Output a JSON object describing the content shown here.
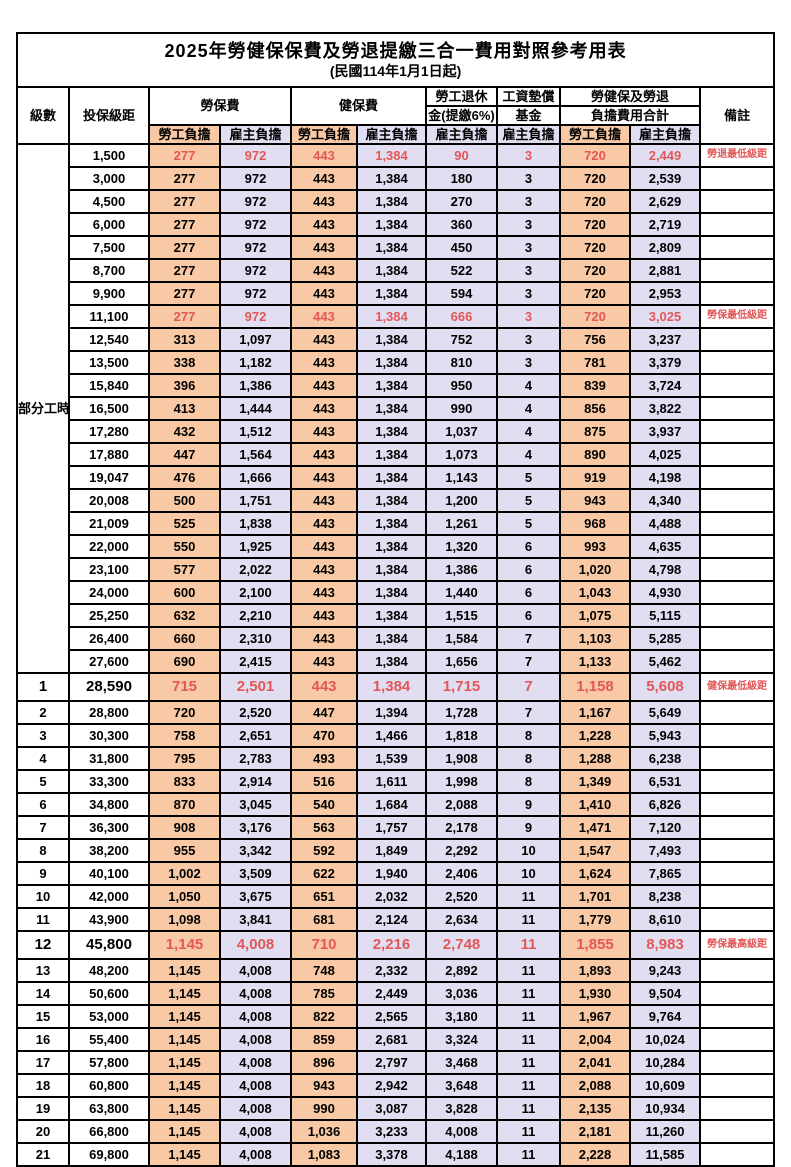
{
  "page": {
    "title": "2025年勞健保保費及勞退提繳三合一費用對照參考用表",
    "subtitle": "(民國114年1月1日起)"
  },
  "header": {
    "level": "級數",
    "bracket": "投保級距",
    "labor_fee": "勞保費",
    "health_fee": "健保費",
    "pension_line1": "勞工退休",
    "pension_line2": "金(提繳6%)",
    "wage_fund_line1": "工資墊償",
    "wage_fund_line2": "基金",
    "total_line1": "勞健保及勞退",
    "total_line2": "負擔費用合計",
    "employee_share": "勞工負擔",
    "employer_share": "雇主負擔",
    "remark": "備註"
  },
  "part_time_label": "部分工時",
  "part_time_rowspan": 23,
  "colors": {
    "employee_bg": "#F8C9A4",
    "employer_bg": "#E2DEF2",
    "highlight_red": "#E25757",
    "border": "#000000"
  },
  "rows": [
    {
      "level": "",
      "bracket": "1,500",
      "values": [
        "277",
        "972",
        "443",
        "1,384",
        "90",
        "3",
        "720",
        "2,449"
      ],
      "remark": "勞退最低級距",
      "highlight": true,
      "big": false
    },
    {
      "level": "",
      "bracket": "3,000",
      "values": [
        "277",
        "972",
        "443",
        "1,384",
        "180",
        "3",
        "720",
        "2,539"
      ],
      "remark": "",
      "highlight": false,
      "big": false
    },
    {
      "level": "",
      "bracket": "4,500",
      "values": [
        "277",
        "972",
        "443",
        "1,384",
        "270",
        "3",
        "720",
        "2,629"
      ],
      "remark": "",
      "highlight": false,
      "big": false
    },
    {
      "level": "",
      "bracket": "6,000",
      "values": [
        "277",
        "972",
        "443",
        "1,384",
        "360",
        "3",
        "720",
        "2,719"
      ],
      "remark": "",
      "highlight": false,
      "big": false
    },
    {
      "level": "",
      "bracket": "7,500",
      "values": [
        "277",
        "972",
        "443",
        "1,384",
        "450",
        "3",
        "720",
        "2,809"
      ],
      "remark": "",
      "highlight": false,
      "big": false
    },
    {
      "level": "",
      "bracket": "8,700",
      "values": [
        "277",
        "972",
        "443",
        "1,384",
        "522",
        "3",
        "720",
        "2,881"
      ],
      "remark": "",
      "highlight": false,
      "big": false
    },
    {
      "level": "",
      "bracket": "9,900",
      "values": [
        "277",
        "972",
        "443",
        "1,384",
        "594",
        "3",
        "720",
        "2,953"
      ],
      "remark": "",
      "highlight": false,
      "big": false
    },
    {
      "level": "",
      "bracket": "11,100",
      "values": [
        "277",
        "972",
        "443",
        "1,384",
        "666",
        "3",
        "720",
        "3,025"
      ],
      "remark": "勞保最低級距",
      "highlight": true,
      "big": false
    },
    {
      "level": "",
      "bracket": "12,540",
      "values": [
        "313",
        "1,097",
        "443",
        "1,384",
        "752",
        "3",
        "756",
        "3,237"
      ],
      "remark": "",
      "highlight": false,
      "big": false
    },
    {
      "level": "",
      "bracket": "13,500",
      "values": [
        "338",
        "1,182",
        "443",
        "1,384",
        "810",
        "3",
        "781",
        "3,379"
      ],
      "remark": "",
      "highlight": false,
      "big": false
    },
    {
      "level": "",
      "bracket": "15,840",
      "values": [
        "396",
        "1,386",
        "443",
        "1,384",
        "950",
        "4",
        "839",
        "3,724"
      ],
      "remark": "",
      "highlight": false,
      "big": false
    },
    {
      "level": "",
      "bracket": "16,500",
      "values": [
        "413",
        "1,444",
        "443",
        "1,384",
        "990",
        "4",
        "856",
        "3,822"
      ],
      "remark": "",
      "highlight": false,
      "big": false
    },
    {
      "level": "",
      "bracket": "17,280",
      "values": [
        "432",
        "1,512",
        "443",
        "1,384",
        "1,037",
        "4",
        "875",
        "3,937"
      ],
      "remark": "",
      "highlight": false,
      "big": false
    },
    {
      "level": "",
      "bracket": "17,880",
      "values": [
        "447",
        "1,564",
        "443",
        "1,384",
        "1,073",
        "4",
        "890",
        "4,025"
      ],
      "remark": "",
      "highlight": false,
      "big": false
    },
    {
      "level": "",
      "bracket": "19,047",
      "values": [
        "476",
        "1,666",
        "443",
        "1,384",
        "1,143",
        "5",
        "919",
        "4,198"
      ],
      "remark": "",
      "highlight": false,
      "big": false
    },
    {
      "level": "",
      "bracket": "20,008",
      "values": [
        "500",
        "1,751",
        "443",
        "1,384",
        "1,200",
        "5",
        "943",
        "4,340"
      ],
      "remark": "",
      "highlight": false,
      "big": false
    },
    {
      "level": "",
      "bracket": "21,009",
      "values": [
        "525",
        "1,838",
        "443",
        "1,384",
        "1,261",
        "5",
        "968",
        "4,488"
      ],
      "remark": "",
      "highlight": false,
      "big": false
    },
    {
      "level": "",
      "bracket": "22,000",
      "values": [
        "550",
        "1,925",
        "443",
        "1,384",
        "1,320",
        "6",
        "993",
        "4,635"
      ],
      "remark": "",
      "highlight": false,
      "big": false
    },
    {
      "level": "",
      "bracket": "23,100",
      "values": [
        "577",
        "2,022",
        "443",
        "1,384",
        "1,386",
        "6",
        "1,020",
        "4,798"
      ],
      "remark": "",
      "highlight": false,
      "big": false
    },
    {
      "level": "",
      "bracket": "24,000",
      "values": [
        "600",
        "2,100",
        "443",
        "1,384",
        "1,440",
        "6",
        "1,043",
        "4,930"
      ],
      "remark": "",
      "highlight": false,
      "big": false
    },
    {
      "level": "",
      "bracket": "25,250",
      "values": [
        "632",
        "2,210",
        "443",
        "1,384",
        "1,515",
        "6",
        "1,075",
        "5,115"
      ],
      "remark": "",
      "highlight": false,
      "big": false
    },
    {
      "level": "",
      "bracket": "26,400",
      "values": [
        "660",
        "2,310",
        "443",
        "1,384",
        "1,584",
        "7",
        "1,103",
        "5,285"
      ],
      "remark": "",
      "highlight": false,
      "big": false
    },
    {
      "level": "",
      "bracket": "27,600",
      "values": [
        "690",
        "2,415",
        "443",
        "1,384",
        "1,656",
        "7",
        "1,133",
        "5,462"
      ],
      "remark": "",
      "highlight": false,
      "big": false
    },
    {
      "level": "1",
      "bracket": "28,590",
      "values": [
        "715",
        "2,501",
        "443",
        "1,384",
        "1,715",
        "7",
        "1,158",
        "5,608"
      ],
      "remark": "健保最低級距",
      "highlight": true,
      "big": true
    },
    {
      "level": "2",
      "bracket": "28,800",
      "values": [
        "720",
        "2,520",
        "447",
        "1,394",
        "1,728",
        "7",
        "1,167",
        "5,649"
      ],
      "remark": "",
      "highlight": false,
      "big": false
    },
    {
      "level": "3",
      "bracket": "30,300",
      "values": [
        "758",
        "2,651",
        "470",
        "1,466",
        "1,818",
        "8",
        "1,228",
        "5,943"
      ],
      "remark": "",
      "highlight": false,
      "big": false
    },
    {
      "level": "4",
      "bracket": "31,800",
      "values": [
        "795",
        "2,783",
        "493",
        "1,539",
        "1,908",
        "8",
        "1,288",
        "6,238"
      ],
      "remark": "",
      "highlight": false,
      "big": false
    },
    {
      "level": "5",
      "bracket": "33,300",
      "values": [
        "833",
        "2,914",
        "516",
        "1,611",
        "1,998",
        "8",
        "1,349",
        "6,531"
      ],
      "remark": "",
      "highlight": false,
      "big": false
    },
    {
      "level": "6",
      "bracket": "34,800",
      "values": [
        "870",
        "3,045",
        "540",
        "1,684",
        "2,088",
        "9",
        "1,410",
        "6,826"
      ],
      "remark": "",
      "highlight": false,
      "big": false
    },
    {
      "level": "7",
      "bracket": "36,300",
      "values": [
        "908",
        "3,176",
        "563",
        "1,757",
        "2,178",
        "9",
        "1,471",
        "7,120"
      ],
      "remark": "",
      "highlight": false,
      "big": false
    },
    {
      "level": "8",
      "bracket": "38,200",
      "values": [
        "955",
        "3,342",
        "592",
        "1,849",
        "2,292",
        "10",
        "1,547",
        "7,493"
      ],
      "remark": "",
      "highlight": false,
      "big": false
    },
    {
      "level": "9",
      "bracket": "40,100",
      "values": [
        "1,002",
        "3,509",
        "622",
        "1,940",
        "2,406",
        "10",
        "1,624",
        "7,865"
      ],
      "remark": "",
      "highlight": false,
      "big": false
    },
    {
      "level": "10",
      "bracket": "42,000",
      "values": [
        "1,050",
        "3,675",
        "651",
        "2,032",
        "2,520",
        "11",
        "1,701",
        "8,238"
      ],
      "remark": "",
      "highlight": false,
      "big": false
    },
    {
      "level": "11",
      "bracket": "43,900",
      "values": [
        "1,098",
        "3,841",
        "681",
        "2,124",
        "2,634",
        "11",
        "1,779",
        "8,610"
      ],
      "remark": "",
      "highlight": false,
      "big": false
    },
    {
      "level": "12",
      "bracket": "45,800",
      "values": [
        "1,145",
        "4,008",
        "710",
        "2,216",
        "2,748",
        "11",
        "1,855",
        "8,983"
      ],
      "remark": "勞保最高級距",
      "highlight": true,
      "big": true
    },
    {
      "level": "13",
      "bracket": "48,200",
      "values": [
        "1,145",
        "4,008",
        "748",
        "2,332",
        "2,892",
        "11",
        "1,893",
        "9,243"
      ],
      "remark": "",
      "highlight": false,
      "big": false
    },
    {
      "level": "14",
      "bracket": "50,600",
      "values": [
        "1,145",
        "4,008",
        "785",
        "2,449",
        "3,036",
        "11",
        "1,930",
        "9,504"
      ],
      "remark": "",
      "highlight": false,
      "big": false
    },
    {
      "level": "15",
      "bracket": "53,000",
      "values": [
        "1,145",
        "4,008",
        "822",
        "2,565",
        "3,180",
        "11",
        "1,967",
        "9,764"
      ],
      "remark": "",
      "highlight": false,
      "big": false
    },
    {
      "level": "16",
      "bracket": "55,400",
      "values": [
        "1,145",
        "4,008",
        "859",
        "2,681",
        "3,324",
        "11",
        "2,004",
        "10,024"
      ],
      "remark": "",
      "highlight": false,
      "big": false
    },
    {
      "level": "17",
      "bracket": "57,800",
      "values": [
        "1,145",
        "4,008",
        "896",
        "2,797",
        "3,468",
        "11",
        "2,041",
        "10,284"
      ],
      "remark": "",
      "highlight": false,
      "big": false
    },
    {
      "level": "18",
      "bracket": "60,800",
      "values": [
        "1,145",
        "4,008",
        "943",
        "2,942",
        "3,648",
        "11",
        "2,088",
        "10,609"
      ],
      "remark": "",
      "highlight": false,
      "big": false
    },
    {
      "level": "19",
      "bracket": "63,800",
      "values": [
        "1,145",
        "4,008",
        "990",
        "3,087",
        "3,828",
        "11",
        "2,135",
        "10,934"
      ],
      "remark": "",
      "highlight": false,
      "big": false
    },
    {
      "level": "20",
      "bracket": "66,800",
      "values": [
        "1,145",
        "4,008",
        "1,036",
        "3,233",
        "4,008",
        "11",
        "2,181",
        "11,260"
      ],
      "remark": "",
      "highlight": false,
      "big": false
    },
    {
      "level": "21",
      "bracket": "69,800",
      "values": [
        "1,145",
        "4,008",
        "1,083",
        "3,378",
        "4,188",
        "11",
        "2,228",
        "11,585"
      ],
      "remark": "",
      "highlight": false,
      "big": false
    }
  ]
}
